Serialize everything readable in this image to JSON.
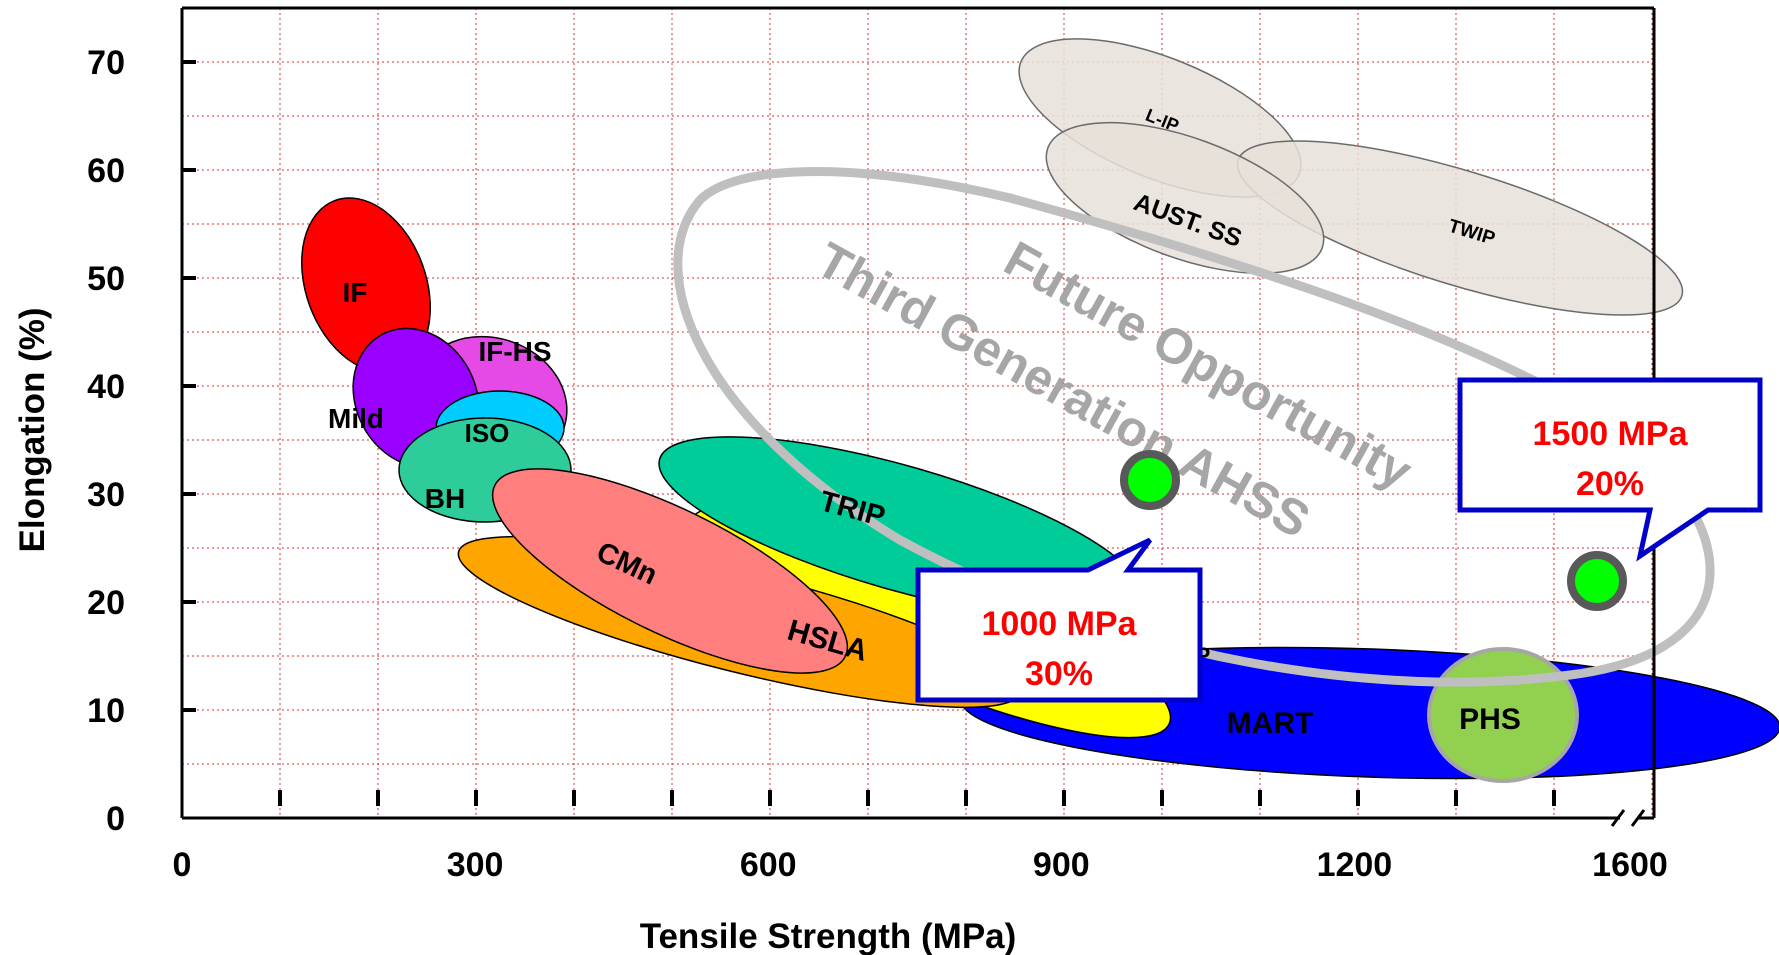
{
  "chart_data": {
    "type": "scatter",
    "title": "",
    "xlabel": "Tensile Strength (MPa)",
    "ylabel": "Elongation (%)",
    "xlim": [
      0,
      1650
    ],
    "ylim": [
      0,
      70
    ],
    "x_ticks": [
      0,
      300,
      600,
      900,
      1200,
      1600
    ],
    "y_ticks": [
      0,
      10,
      20,
      30,
      40,
      50,
      60,
      70
    ],
    "grid": true,
    "x_axis_break": true,
    "regions": [
      {
        "name": "L-IP",
        "color": "#e7e1d9"
      },
      {
        "name": "TWIP",
        "color": "#e7e1d9"
      },
      {
        "name": "AUST. SS",
        "color": "#e7e1d9"
      },
      {
        "name": "IF",
        "color": "#ff0000"
      },
      {
        "name": "IF-HS",
        "color": "#e64ae6"
      },
      {
        "name": "Mild",
        "color": "#9900ff"
      },
      {
        "name": "ISO",
        "color": "#00ccff"
      },
      {
        "name": "BH",
        "color": "#2ecc9a"
      },
      {
        "name": "MART",
        "color": "#0000ff"
      },
      {
        "name": "DP, CP",
        "color": "#ffff00"
      },
      {
        "name": "HSLA",
        "color": "#ffa500"
      },
      {
        "name": "TRIP",
        "color": "#00cc99"
      },
      {
        "name": "CMn",
        "color": "#ff7f7f"
      },
      {
        "name": "PHS",
        "color": "#92d050"
      }
    ],
    "annotations": [
      {
        "text": "Future Opportunity",
        "color": "#a6a6a6"
      },
      {
        "text": "Third Generation AHSS",
        "color": "#a6a6a6"
      }
    ],
    "points": [
      {
        "x": 1000,
        "y": 30,
        "callout": [
          "1000 MPa",
          "30%"
        ]
      },
      {
        "x": 1500,
        "y": 20,
        "callout": [
          "1500 MPa",
          "20%"
        ]
      }
    ]
  }
}
